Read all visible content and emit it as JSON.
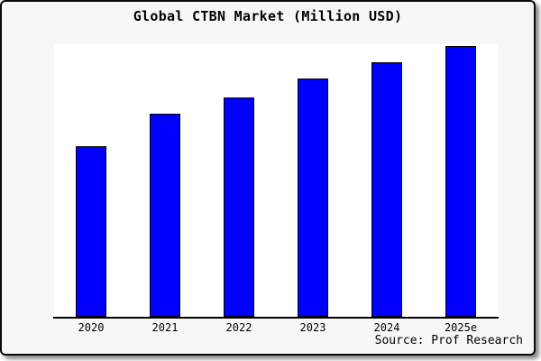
{
  "chart_data": {
    "type": "bar",
    "title": "Global CTBN Market (Million USD)",
    "categories": [
      "2020",
      "2021",
      "2022",
      "2023",
      "2024",
      "2025e"
    ],
    "values": [
      63,
      75,
      81,
      88,
      94,
      100
    ],
    "units": "relative (no y-axis scale shown; normalized so 2025e = 100)",
    "xlabel": "",
    "ylabel": "",
    "ylim": [
      0,
      100.7
    ],
    "grid": false,
    "legend": false,
    "source": "Source: Prof Research",
    "colors": {
      "bar_fill": "#0000fe",
      "bar_border": "#000000",
      "plot_background": "#ffffff",
      "figure_background": "#f7f7f7",
      "frame_border": "#0a0a0a",
      "text": "#000000"
    }
  }
}
